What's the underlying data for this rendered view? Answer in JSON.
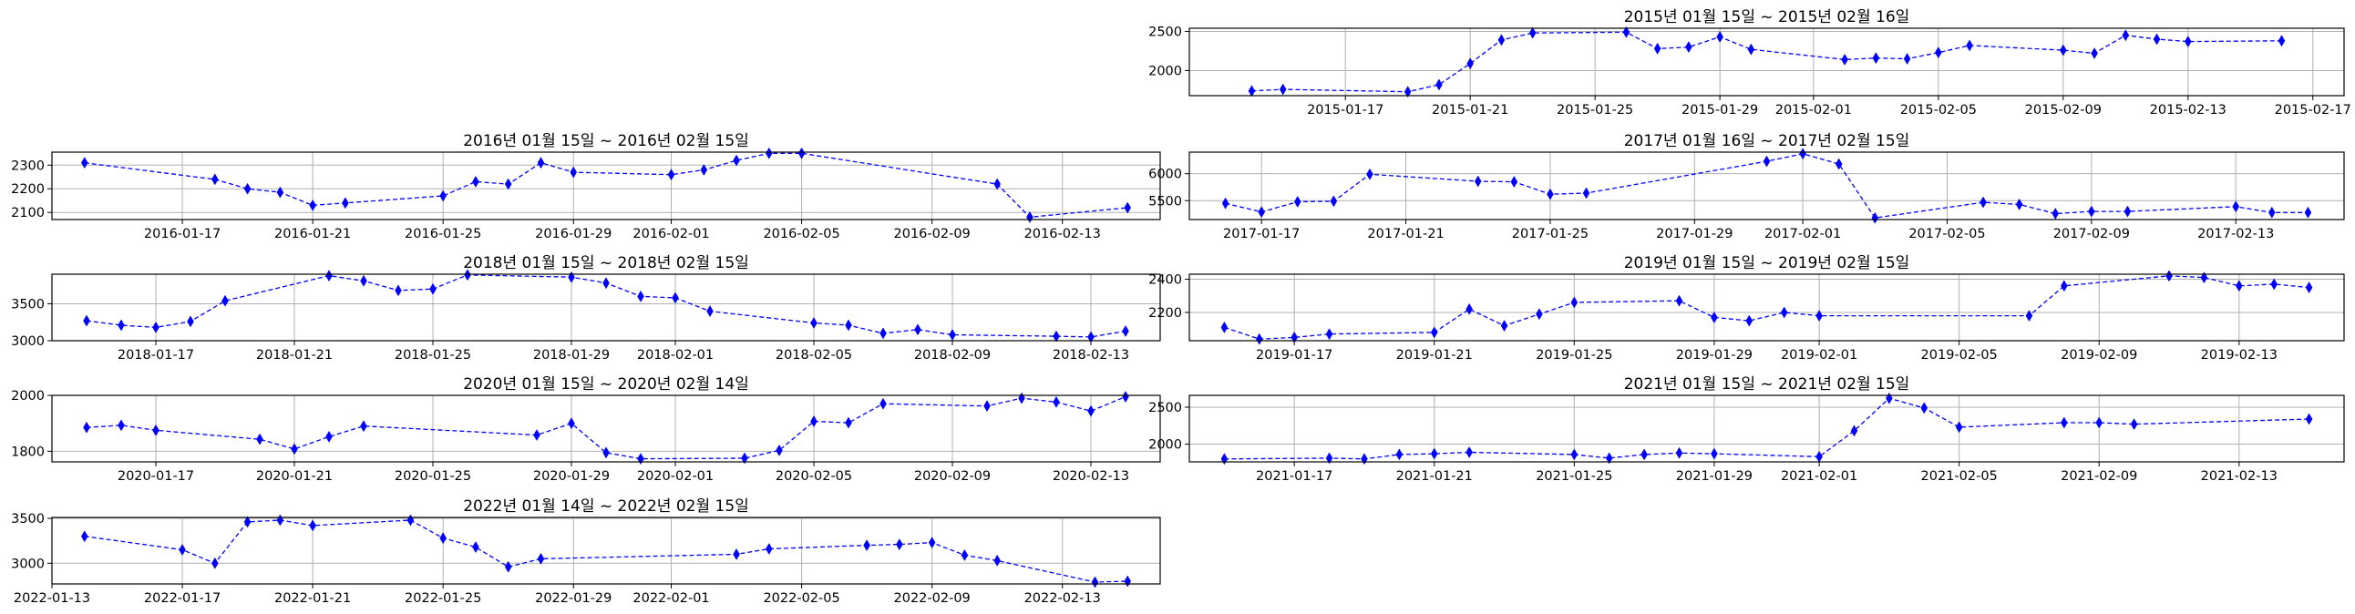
{
  "colors": {
    "series": "#0000ff",
    "grid": "#b0b0b0",
    "frame": "#000000"
  },
  "chart_data": [
    {
      "type": "line",
      "title": "2015년 01월 15일 ~ 2015년 02월 16일",
      "x": [
        "2015-01-14",
        "2015-01-15",
        "2015-01-19",
        "2015-01-20",
        "2015-01-21",
        "2015-01-22",
        "2015-01-23",
        "2015-01-26",
        "2015-01-27",
        "2015-01-28",
        "2015-01-29",
        "2015-01-30",
        "2015-02-02",
        "2015-02-03",
        "2015-02-04",
        "2015-02-05",
        "2015-02-06",
        "2015-02-09",
        "2015-02-10",
        "2015-02-11",
        "2015-02-12",
        "2015-02-13",
        "2015-02-16"
      ],
      "series": [
        {
          "values": [
            1740,
            1760,
            1730,
            1820,
            2090,
            2390,
            2480,
            2490,
            2280,
            2300,
            2430,
            2270,
            2140,
            2160,
            2150,
            2230,
            2320,
            2260,
            2220,
            2450,
            2400,
            2370,
            2380
          ]
        }
      ],
      "xticks": [
        "2015-01-17",
        "2015-01-21",
        "2015-01-25",
        "2015-01-29",
        "2015-02-01",
        "2015-02-05",
        "2015-02-09",
        "2015-02-13",
        "2015-02-17"
      ],
      "yticks": [
        2000,
        2500
      ],
      "ylim": [
        1680,
        2540
      ],
      "xlim": [
        "2015-01-12",
        "2015-02-18"
      ],
      "marker": "thin_diamond",
      "linestyle": "dashed",
      "grid": true
    },
    {
      "type": "line",
      "title": "2016년 01월 15일 ~ 2016년 02월 15일",
      "x": [
        "2016-01-14",
        "2016-01-18",
        "2016-01-19",
        "2016-01-20",
        "2016-01-21",
        "2016-01-22",
        "2016-01-25",
        "2016-01-26",
        "2016-01-27",
        "2016-01-28",
        "2016-01-29",
        "2016-02-01",
        "2016-02-02",
        "2016-02-03",
        "2016-02-04",
        "2016-02-05",
        "2016-02-11",
        "2016-02-12",
        "2016-02-15"
      ],
      "series": [
        {
          "values": [
            2310,
            2240,
            2200,
            2185,
            2130,
            2140,
            2170,
            2230,
            2220,
            2310,
            2270,
            2260,
            2280,
            2320,
            2350,
            2350,
            2220,
            2080,
            2120
          ]
        }
      ],
      "xticks": [
        "2016-01-17",
        "2016-01-21",
        "2016-01-25",
        "2016-01-29",
        "2016-02-01",
        "2016-02-05",
        "2016-02-09",
        "2016-02-13"
      ],
      "yticks": [
        2100,
        2200,
        2300
      ],
      "ylim": [
        2070,
        2355
      ],
      "xlim": [
        "2016-01-13",
        "2016-02-16"
      ],
      "marker": "thin_diamond",
      "linestyle": "dashed",
      "grid": true
    },
    {
      "type": "line",
      "title": "2017년 01월 16일 ~ 2017년 02월 15일",
      "x": [
        "2017-01-16",
        "2017-01-17",
        "2017-01-18",
        "2017-01-19",
        "2017-01-20",
        "2017-01-23",
        "2017-01-24",
        "2017-01-25",
        "2017-01-26",
        "2017-01-31",
        "2017-02-01",
        "2017-02-02",
        "2017-02-03",
        "2017-02-06",
        "2017-02-07",
        "2017-02-08",
        "2017-02-09",
        "2017-02-10",
        "2017-02-13",
        "2017-02-14",
        "2017-02-15"
      ],
      "series": [
        {
          "values": [
            5450,
            5290,
            5480,
            5490,
            5990,
            5860,
            5850,
            5620,
            5640,
            6230,
            6370,
            6180,
            5180,
            5470,
            5430,
            5260,
            5300,
            5300,
            5390,
            5280,
            5280
          ]
        }
      ],
      "xticks": [
        "2017-01-17",
        "2017-01-21",
        "2017-01-25",
        "2017-01-29",
        "2017-02-01",
        "2017-02-05",
        "2017-02-09",
        "2017-02-13"
      ],
      "yticks": [
        5500,
        6000
      ],
      "ylim": [
        5150,
        6400
      ],
      "xlim": [
        "2017-01-15",
        "2017-02-16"
      ],
      "marker": "thin_diamond",
      "linestyle": "dashed",
      "grid": true
    },
    {
      "type": "line",
      "title": "2018년 01월 15일 ~ 2018년 02월 15일",
      "x": [
        "2018-01-15",
        "2018-01-16",
        "2018-01-17",
        "2018-01-18",
        "2018-01-19",
        "2018-01-22",
        "2018-01-23",
        "2018-01-24",
        "2018-01-25",
        "2018-01-26",
        "2018-01-29",
        "2018-01-30",
        "2018-01-31",
        "2018-02-01",
        "2018-02-02",
        "2018-02-05",
        "2018-02-06",
        "2018-02-07",
        "2018-02-08",
        "2018-02-09",
        "2018-02-12",
        "2018-02-13",
        "2018-02-14"
      ],
      "series": [
        {
          "values": [
            3270,
            3210,
            3180,
            3260,
            3540,
            3880,
            3810,
            3680,
            3700,
            3890,
            3860,
            3780,
            3600,
            3580,
            3400,
            3240,
            3210,
            3100,
            3150,
            3080,
            3060,
            3050,
            3130
          ]
        }
      ],
      "xticks": [
        "2018-01-17",
        "2018-01-21",
        "2018-01-25",
        "2018-01-29",
        "2018-02-01",
        "2018-02-05",
        "2018-02-09",
        "2018-02-13"
      ],
      "yticks": [
        3000,
        3500
      ],
      "ylim": [
        3000,
        3900
      ],
      "xlim": [
        "2018-01-14",
        "2018-02-15"
      ],
      "marker": "thin_diamond",
      "linestyle": "dashed",
      "grid": true
    },
    {
      "type": "line",
      "title": "2019년 01월 15일 ~ 2019년 02월 15일",
      "x": [
        "2019-01-15",
        "2019-01-16",
        "2019-01-17",
        "2019-01-18",
        "2019-01-21",
        "2019-01-22",
        "2019-01-23",
        "2019-01-24",
        "2019-01-25",
        "2019-01-28",
        "2019-01-29",
        "2019-01-30",
        "2019-01-31",
        "2019-02-01",
        "2019-02-07",
        "2019-02-08",
        "2019-02-11",
        "2019-02-12",
        "2019-02-13",
        "2019-02-14",
        "2019-02-15"
      ],
      "series": [
        {
          "values": [
            2110,
            2040,
            2050,
            2070,
            2080,
            2220,
            2120,
            2190,
            2260,
            2270,
            2170,
            2150,
            2200,
            2180,
            2180,
            2360,
            2420,
            2410,
            2360,
            2370,
            2350
          ]
        }
      ],
      "xticks": [
        "2019-01-17",
        "2019-01-21",
        "2019-01-25",
        "2019-01-29",
        "2019-02-01",
        "2019-02-05",
        "2019-02-09",
        "2019-02-13"
      ],
      "yticks": [
        2200,
        2400
      ],
      "ylim": [
        2030,
        2430
      ],
      "xlim": [
        "2019-01-14",
        "2019-02-16"
      ],
      "marker": "thin_diamond",
      "linestyle": "dashed",
      "grid": true
    },
    {
      "type": "line",
      "title": "2020년 01월 15일 ~ 2020년 02월 14일",
      "x": [
        "2020-01-15",
        "2020-01-16",
        "2020-01-17",
        "2020-01-20",
        "2020-01-21",
        "2020-01-22",
        "2020-01-23",
        "2020-01-28",
        "2020-01-29",
        "2020-01-30",
        "2020-01-31",
        "2020-02-03",
        "2020-02-04",
        "2020-02-05",
        "2020-02-06",
        "2020-02-07",
        "2020-02-10",
        "2020-02-11",
        "2020-02-12",
        "2020-02-13",
        "2020-02-14"
      ],
      "series": [
        {
          "values": [
            1885,
            1893,
            1875,
            1843,
            1808,
            1852,
            1890,
            1858,
            1900,
            1795,
            1773,
            1775,
            1803,
            1907,
            1902,
            1970,
            1962,
            1990,
            1976,
            1944,
            1995
          ]
        }
      ],
      "xticks": [
        "2020-01-17",
        "2020-01-21",
        "2020-01-25",
        "2020-01-29",
        "2020-02-01",
        "2020-02-05",
        "2020-02-09",
        "2020-02-13"
      ],
      "yticks": [
        1800,
        2000
      ],
      "ylim": [
        1762,
        2000
      ],
      "xlim": [
        "2020-01-14",
        "2020-02-15"
      ],
      "marker": "thin_diamond",
      "linestyle": "dashed",
      "grid": true
    },
    {
      "type": "line",
      "title": "2021년 01월 15일 ~ 2021년 02월 15일",
      "x": [
        "2021-01-15",
        "2021-01-18",
        "2021-01-19",
        "2021-01-20",
        "2021-01-21",
        "2021-01-22",
        "2021-01-25",
        "2021-01-26",
        "2021-01-27",
        "2021-01-28",
        "2021-01-29",
        "2021-02-01",
        "2021-02-02",
        "2021-02-03",
        "2021-02-04",
        "2021-02-05",
        "2021-02-08",
        "2021-02-09",
        "2021-02-10",
        "2021-02-15"
      ],
      "series": [
        {
          "values": [
            1800,
            1810,
            1800,
            1860,
            1870,
            1890,
            1860,
            1810,
            1860,
            1880,
            1870,
            1830,
            2180,
            2620,
            2490,
            2230,
            2290,
            2290,
            2270,
            2340
          ]
        }
      ],
      "xticks": [
        "2021-01-17",
        "2021-01-21",
        "2021-01-25",
        "2021-01-29",
        "2021-02-01",
        "2021-02-05",
        "2021-02-09",
        "2021-02-13"
      ],
      "yticks": [
        2000,
        2500
      ],
      "ylim": [
        1760,
        2660
      ],
      "xlim": [
        "2021-01-14",
        "2021-02-16"
      ],
      "marker": "thin_diamond",
      "linestyle": "dashed",
      "grid": true
    },
    {
      "type": "line",
      "title": "2022년 01월 14일 ~ 2022년 02월 15일",
      "x": [
        "2022-01-14",
        "2022-01-17",
        "2022-01-18",
        "2022-01-19",
        "2022-01-20",
        "2022-01-21",
        "2022-01-24",
        "2022-01-25",
        "2022-01-26",
        "2022-01-27",
        "2022-01-28",
        "2022-02-03",
        "2022-02-04",
        "2022-02-07",
        "2022-02-08",
        "2022-02-09",
        "2022-02-10",
        "2022-02-11",
        "2022-02-14",
        "2022-02-15"
      ],
      "series": [
        {
          "values": [
            3300,
            3150,
            3000,
            3460,
            3480,
            3420,
            3480,
            3280,
            3180,
            2960,
            3050,
            3100,
            3160,
            3200,
            3210,
            3230,
            3090,
            3030,
            2790,
            2800
          ]
        }
      ],
      "xticks": [
        "2022-01-13",
        "2022-01-17",
        "2022-01-21",
        "2022-01-25",
        "2022-01-29",
        "2022-02-01",
        "2022-02-05",
        "2022-02-09",
        "2022-02-13"
      ],
      "yticks": [
        3000,
        3500
      ],
      "ylim": [
        2770,
        3510
      ],
      "xlim": [
        "2022-01-13",
        "2022-02-16"
      ],
      "marker": "thin_diamond",
      "linestyle": "dashed",
      "grid": true
    }
  ]
}
